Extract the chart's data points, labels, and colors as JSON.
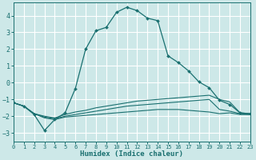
{
  "xlabel": "Humidex (Indice chaleur)",
  "xlim": [
    0,
    23
  ],
  "ylim": [
    -3.5,
    4.8
  ],
  "yticks": [
    -3,
    -2,
    -1,
    0,
    1,
    2,
    3,
    4
  ],
  "xticks": [
    0,
    1,
    2,
    3,
    4,
    5,
    6,
    7,
    8,
    9,
    10,
    11,
    12,
    13,
    14,
    15,
    16,
    17,
    18,
    19,
    20,
    21,
    22,
    23
  ],
  "bg_color": "#cde8e8",
  "grid_color": "#ffffff",
  "line_color": "#1a7070",
  "main_line": {
    "x": [
      0,
      1,
      2,
      3,
      4,
      5,
      6,
      7,
      8,
      9,
      10,
      11,
      12,
      13,
      14,
      15,
      16,
      17,
      18,
      19,
      20,
      21,
      22,
      23
    ],
    "y": [
      -1.2,
      -1.4,
      -1.9,
      -2.85,
      -2.2,
      -1.8,
      -0.35,
      2.0,
      3.1,
      3.3,
      4.2,
      4.5,
      4.3,
      3.85,
      3.7,
      1.6,
      1.2,
      0.7,
      0.05,
      -0.3,
      -1.05,
      -1.3,
      -1.8,
      -1.85
    ]
  },
  "flat_lines": [
    {
      "x": [
        0,
        1,
        2,
        3,
        4,
        5,
        6,
        7,
        8,
        9,
        10,
        11,
        12,
        13,
        14,
        15,
        16,
        17,
        18,
        19,
        20,
        21,
        22,
        23
      ],
      "y": [
        -1.2,
        -1.4,
        -1.85,
        -2.0,
        -2.1,
        -1.9,
        -1.75,
        -1.65,
        -1.5,
        -1.4,
        -1.3,
        -1.2,
        -1.1,
        -1.05,
        -1.0,
        -0.95,
        -0.9,
        -0.85,
        -0.8,
        -0.75,
        -1.0,
        -1.15,
        -1.8,
        -1.85
      ]
    },
    {
      "x": [
        0,
        1,
        2,
        3,
        4,
        5,
        6,
        7,
        8,
        9,
        10,
        11,
        12,
        13,
        14,
        15,
        16,
        17,
        18,
        19,
        20,
        21,
        22,
        23
      ],
      "y": [
        -1.2,
        -1.4,
        -1.85,
        -2.05,
        -2.15,
        -2.0,
        -1.9,
        -1.8,
        -1.7,
        -1.6,
        -1.5,
        -1.4,
        -1.35,
        -1.3,
        -1.25,
        -1.2,
        -1.15,
        -1.1,
        -1.05,
        -1.0,
        -1.6,
        -1.7,
        -1.85,
        -1.9
      ]
    },
    {
      "x": [
        0,
        1,
        2,
        3,
        4,
        5,
        6,
        7,
        8,
        9,
        10,
        11,
        12,
        13,
        14,
        15,
        16,
        17,
        18,
        19,
        20,
        21,
        22,
        23
      ],
      "y": [
        -1.2,
        -1.4,
        -1.85,
        -2.1,
        -2.2,
        -2.05,
        -2.0,
        -1.95,
        -1.9,
        -1.85,
        -1.8,
        -1.75,
        -1.7,
        -1.65,
        -1.6,
        -1.6,
        -1.6,
        -1.65,
        -1.7,
        -1.75,
        -1.85,
        -1.8,
        -1.9,
        -1.9
      ]
    }
  ]
}
